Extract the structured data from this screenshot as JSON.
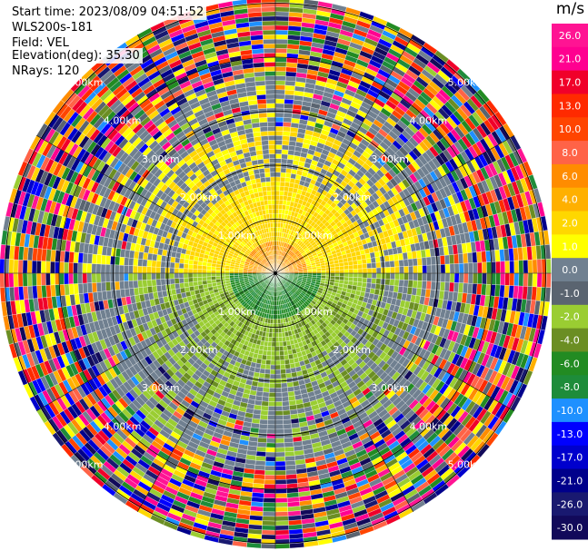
{
  "header": {
    "start_time": "Start time: 2023/08/09 04:51:52",
    "instrument": "WLS200s-181",
    "field": "Field: VEL",
    "elevation": "Elevation(deg): 35.30",
    "nrays": "NRays: 120"
  },
  "chart_data": {
    "type": "ppi-polar",
    "field": "VEL",
    "nrays": 120,
    "elevation_deg": 35.3,
    "range_ring_labels": [
      "1.00km",
      "2.00km",
      "3.00km",
      "4.00km",
      "5.00km"
    ],
    "range_rings_km": [
      1,
      2,
      3,
      4,
      5
    ],
    "max_range_km": 5.1,
    "colorbar": {
      "unit": "m/s",
      "tick_labels": [
        "26.0",
        "21.0",
        "17.0",
        "13.0",
        "10.0",
        "8.0",
        "6.0",
        "4.0",
        "2.0",
        "1.0",
        "0.0",
        "-1.0",
        "-2.0",
        "-4.0",
        "-6.0",
        "-8.0",
        "-10.0",
        "-13.0",
        "-17.0",
        "-21.0",
        "-26.0",
        "-30.0"
      ],
      "colors": [
        "#ff1493",
        "#ff0090",
        "#f0002a",
        "#ff2a00",
        "#ff4500",
        "#ff6347",
        "#ff8c00",
        "#ffb000",
        "#ffd700",
        "#ffff00",
        "#708090",
        "#5a6470",
        "#9acd32",
        "#6b8e23",
        "#228b22",
        "#1e8c3a",
        "#1e90ff",
        "#0000ff",
        "#0000cd",
        "#00008b",
        "#191970",
        "#120a5a"
      ]
    },
    "inner_pattern": {
      "north_half": "yellow/orange (+1 to +6 m/s)",
      "south_half": "green (-1 to -6 m/s)"
    }
  }
}
